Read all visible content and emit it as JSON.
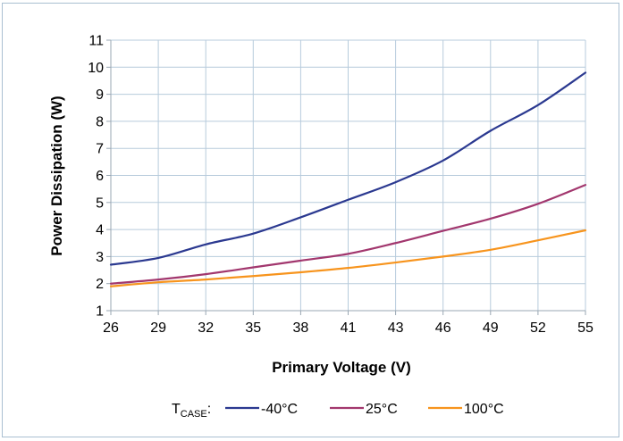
{
  "chart_data": {
    "type": "line",
    "xlabel": "Primary Voltage (V)",
    "ylabel": "Power Dissipation (W)",
    "categories": [
      "26",
      "29",
      "32",
      "35",
      "38",
      "41",
      "43",
      "46",
      "49",
      "52",
      "55"
    ],
    "ylim": [
      1,
      11
    ],
    "yticks": [
      "1",
      "2",
      "3",
      "4",
      "5",
      "6",
      "7",
      "8",
      "9",
      "10",
      "11"
    ],
    "grid": true,
    "legend_position": "bottom",
    "legend_title": {
      "main": "T",
      "sub": "CASE",
      "suffix": ":"
    },
    "series": [
      {
        "name": "-40°C",
        "color": "#2b3990",
        "values": [
          2.7,
          2.95,
          3.45,
          3.85,
          4.45,
          5.1,
          5.75,
          6.55,
          7.65,
          8.6,
          9.8
        ]
      },
      {
        "name": "25°C",
        "color": "#a2376e",
        "values": [
          2.0,
          2.15,
          2.35,
          2.6,
          2.85,
          3.1,
          3.5,
          3.95,
          4.4,
          4.95,
          5.65
        ]
      },
      {
        "name": "100°C",
        "color": "#f7941d",
        "values": [
          1.9,
          2.05,
          2.15,
          2.28,
          2.42,
          2.58,
          2.78,
          3.0,
          3.25,
          3.6,
          3.97
        ]
      }
    ]
  }
}
